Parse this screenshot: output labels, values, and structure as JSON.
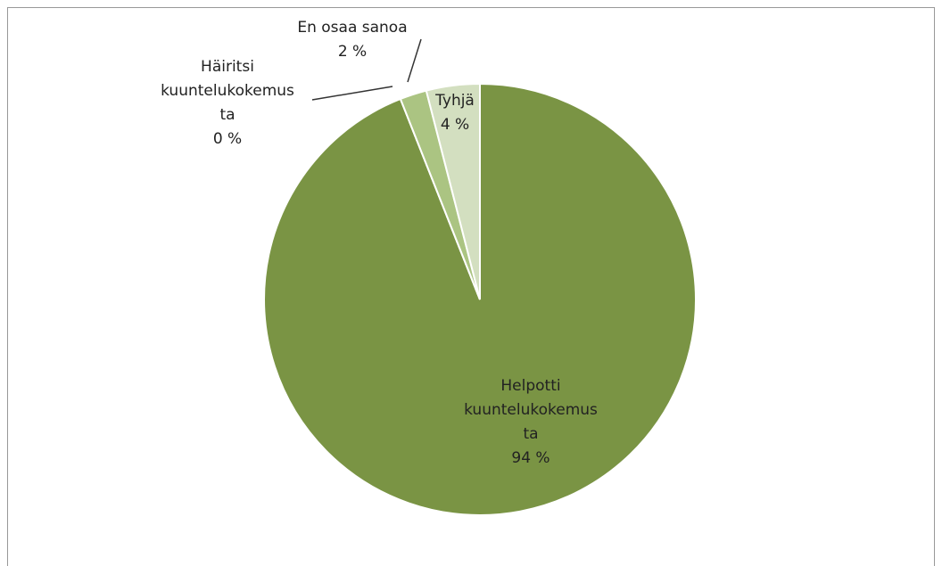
{
  "chart_data": {
    "type": "pie",
    "categories": [
      "Helpotti kuuntelukokemusta",
      "Häiritsi kuuntelukokemusta",
      "En osaa sanoa",
      "Tyhjä"
    ],
    "values": [
      94,
      0,
      2,
      4
    ],
    "value_labels": [
      "94 %",
      "0 %",
      "2 %",
      "4 %"
    ],
    "colors": [
      "#7a9444",
      "#93ad5e",
      "#abc482",
      "#d3dfc0"
    ]
  }
}
